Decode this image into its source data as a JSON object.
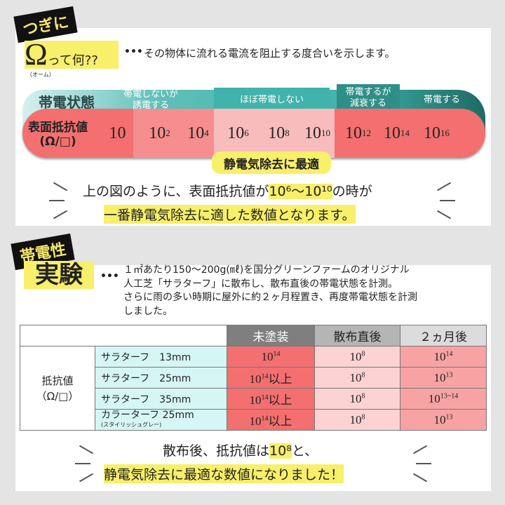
{
  "section1": {
    "tag": "つぎに",
    "omega": "Ω",
    "omega_suffix": "って何??",
    "omega_reading": "（オーム）",
    "dots": "•••",
    "definition": "その物体に流れる電流を阻止する度合いを示します。",
    "state_label": "帯電状態",
    "states": [
      "帯電しないが\n誘電する",
      "ほぼ帯電しない",
      "帯電するが\n減衰する",
      "帯電する"
    ],
    "resistance_label": "表面抵抗値",
    "resistance_unit": "(Ω/□)",
    "values": [
      {
        "base": "10",
        "exp": ""
      },
      {
        "base": "10",
        "exp": "2"
      },
      {
        "base": "10",
        "exp": "4"
      },
      {
        "base": "10",
        "exp": "6"
      },
      {
        "base": "10",
        "exp": "8"
      },
      {
        "base": "10",
        "exp": "10"
      },
      {
        "base": "10",
        "exp": "12"
      },
      {
        "base": "10",
        "exp": "14"
      },
      {
        "base": "10",
        "exp": "16"
      }
    ],
    "optimal_label": "静電気除去に最適",
    "conclusion_line1_a": "上の図のように、表面抵抗値が",
    "conclusion_range": "10⁶〜10¹⁰",
    "conclusion_line1_b": "の時が",
    "conclusion_line2": "一番静電気除去に適した数値となります。"
  },
  "section2": {
    "tag": "帯電性",
    "title": "実験",
    "dots": "•••",
    "description": [
      "１㎡あたり150〜200g(㎖)を国分グリーンファームのオリジナル",
      "人工芝「サラターフ」に散布し、散布直後の帯電状態を計測。",
      "さらに雨の多い時期に屋外に約２ヶ月程置き、再度帯電状態を計測",
      "しました。"
    ],
    "table": {
      "headers": [
        "未塗装",
        "散布直後",
        "２ヵ月後"
      ],
      "row_label": "抵抗値",
      "row_unit": "（Ω/□）",
      "rows": [
        {
          "name": "サラターフ　13mm",
          "sub": "",
          "v": [
            [
              "10",
              "14",
              ""
            ],
            [
              "10",
              "8",
              ""
            ],
            [
              "10",
              "14",
              ""
            ]
          ]
        },
        {
          "name": "サラターフ　25mm",
          "sub": "",
          "v": [
            [
              "10",
              "14",
              "以上"
            ],
            [
              "10",
              "8",
              ""
            ],
            [
              "10",
              "13",
              ""
            ]
          ]
        },
        {
          "name": "サラターフ　35mm",
          "sub": "",
          "v": [
            [
              "10",
              "14",
              "以上"
            ],
            [
              "10",
              "8",
              ""
            ],
            [
              "10",
              "13~14",
              ""
            ]
          ]
        },
        {
          "name": "カラーターフ",
          "sub": "(スタイリッシュグレー)",
          "size": "25mm",
          "v": [
            [
              "10",
              "14",
              "以上"
            ],
            [
              "10",
              "8",
              ""
            ],
            [
              "10",
              "13",
              ""
            ]
          ]
        }
      ]
    },
    "conclusion_line1_a": "散布後、抵抗値は",
    "conclusion_value": "10⁸",
    "conclusion_line1_b": "と、",
    "conclusion_line2": "静電気除去に最適な数値になりました！"
  },
  "colors": {
    "background": "#e4e4e4",
    "teal": "#3fb3ac",
    "red": "#f46f6f",
    "highlight": "#f8ef6a"
  }
}
